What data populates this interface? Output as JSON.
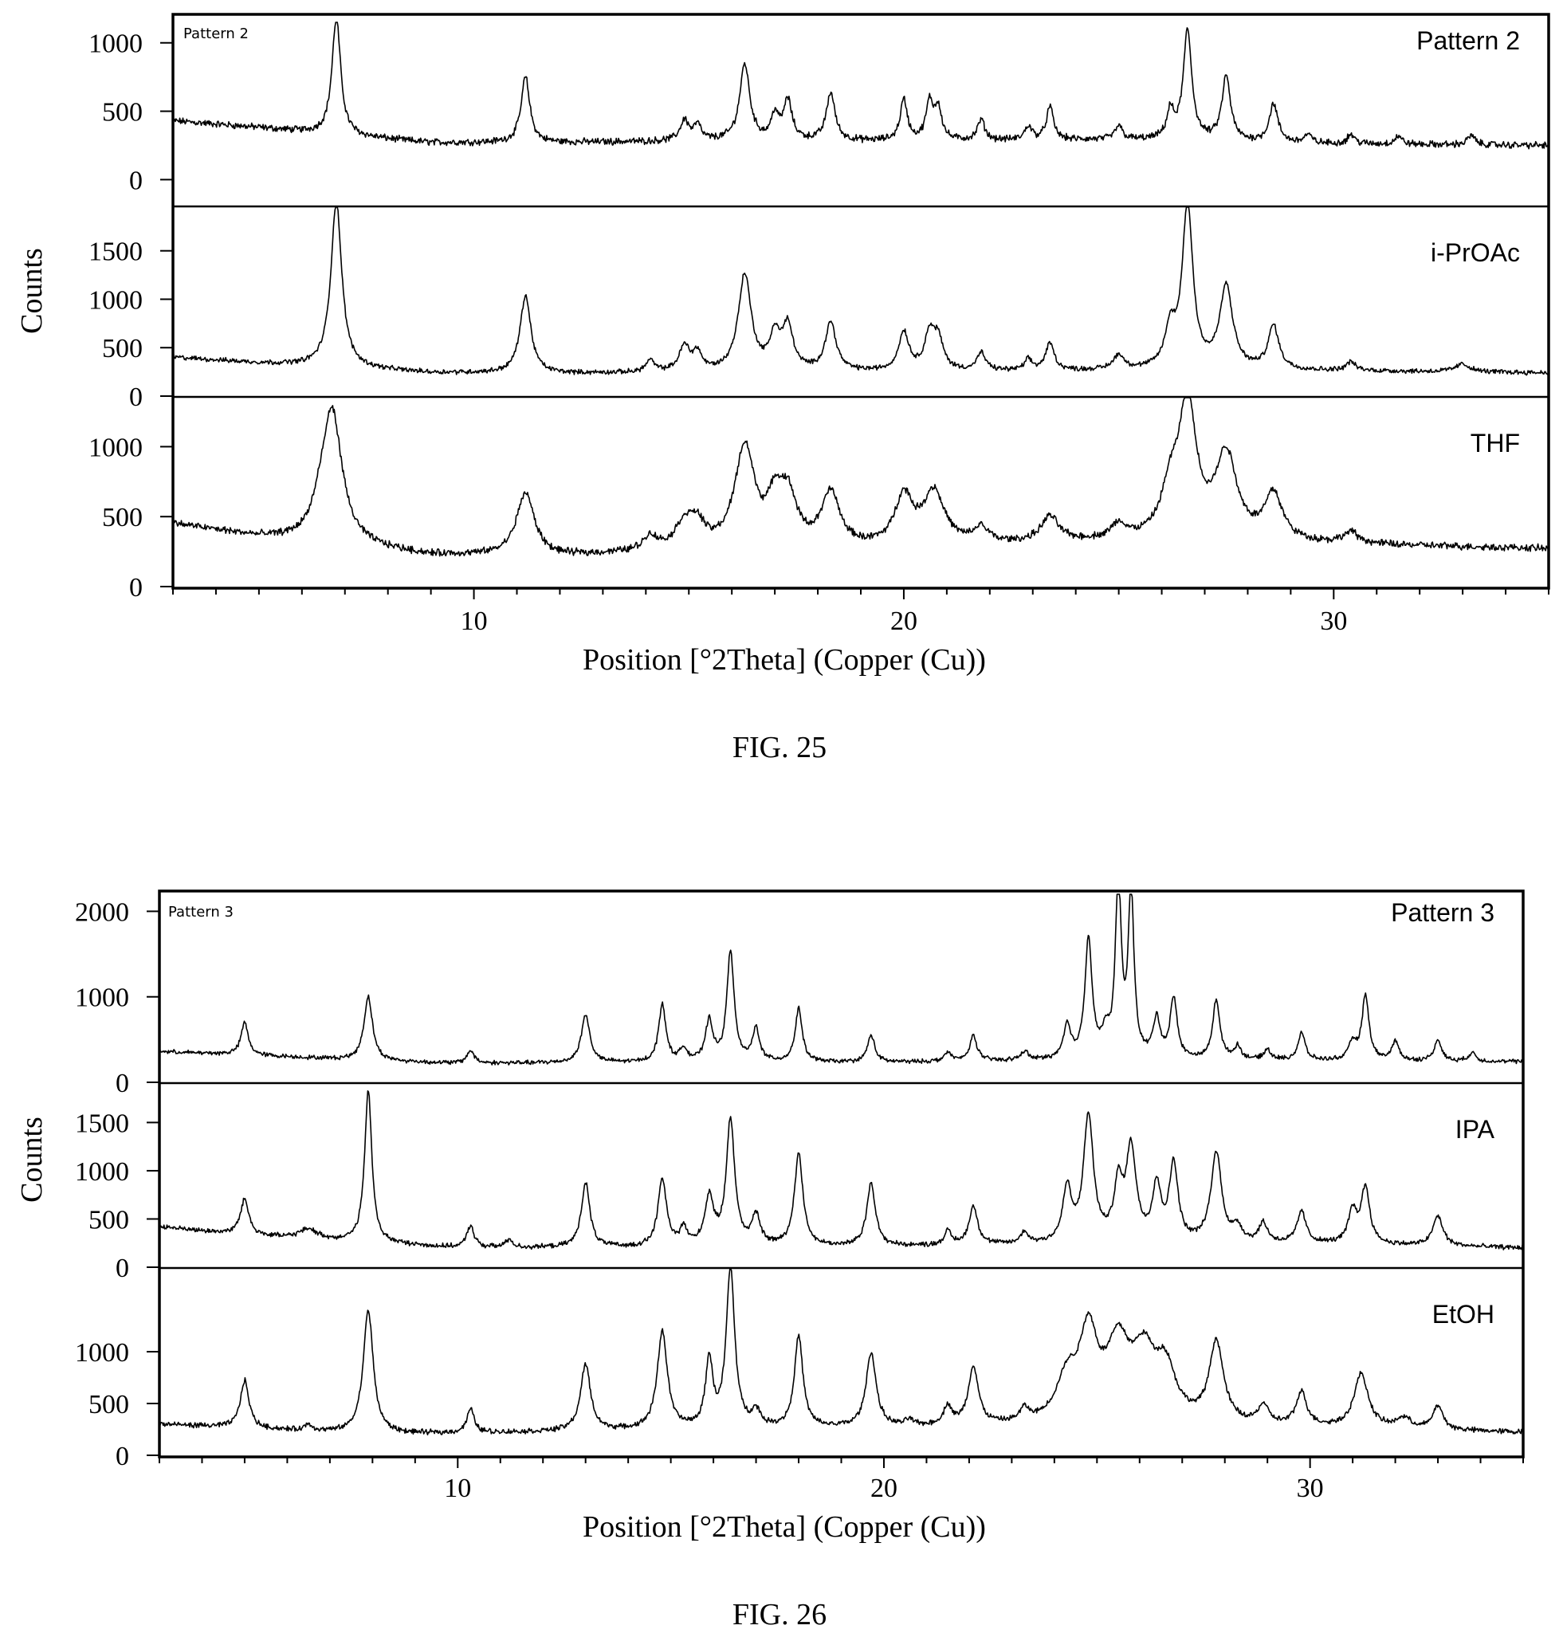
{
  "figures": [
    {
      "id": "fig25",
      "caption": "FIG. 25",
      "ylabel": "Counts",
      "xlabel": "Position [°2Theta] (Copper (Cu))",
      "inset_label": "Pattern 2",
      "xticks": [
        "10",
        "20",
        "30"
      ]
    },
    {
      "id": "fig26",
      "caption": "FIG. 26",
      "ylabel": "Counts",
      "xlabel": "Position [°2Theta] (Copper (Cu))",
      "inset_label": "Pattern 3",
      "xticks": [
        "10",
        "20",
        "30"
      ]
    }
  ],
  "chart_data": [
    {
      "type": "line",
      "xlabel": "Position [°2Theta] (Copper (Cu))",
      "ylabel": "Counts",
      "xlim": [
        3,
        35
      ],
      "grid": false,
      "panels": [
        {
          "name": "Pattern 2",
          "ylim": [
            -190,
            1150
          ],
          "yticks": [
            "0",
            "500",
            "1000"
          ],
          "baseline": {
            "x": [
              3,
              5,
              7,
              9,
              12,
              15,
              20,
              25,
              30,
              35
            ],
            "y": [
              430,
              380,
              320,
              270,
              270,
              280,
              280,
              290,
              260,
              250
            ]
          },
          "peaks": [
            [
              6.8,
              860,
              0.12
            ],
            [
              11.2,
              480,
              0.12
            ],
            [
              14.9,
              150,
              0.12
            ],
            [
              15.2,
              110,
              0.1
            ],
            [
              16.3,
              560,
              0.14
            ],
            [
              17.0,
              180,
              0.1
            ],
            [
              17.3,
              290,
              0.12
            ],
            [
              18.3,
              350,
              0.12
            ],
            [
              20.0,
              300,
              0.1
            ],
            [
              20.6,
              270,
              0.1
            ],
            [
              20.8,
              230,
              0.1
            ],
            [
              21.8,
              150,
              0.1
            ],
            [
              22.9,
              100,
              0.1
            ],
            [
              23.4,
              240,
              0.1
            ],
            [
              25.0,
              100,
              0.1
            ],
            [
              26.2,
              200,
              0.1
            ],
            [
              26.6,
              800,
              0.12
            ],
            [
              27.5,
              470,
              0.12
            ],
            [
              28.6,
              280,
              0.12
            ],
            [
              29.4,
              60,
              0.1
            ],
            [
              30.4,
              70,
              0.1
            ],
            [
              31.5,
              60,
              0.1
            ],
            [
              33.2,
              70,
              0.1
            ]
          ]
        },
        {
          "name": "i-PrOAc",
          "ylim": [
            0,
            1950
          ],
          "yticks": [
            "0",
            "500",
            "1000",
            "1500"
          ],
          "baseline": {
            "x": [
              3,
              5,
              7,
              9,
              12,
              15,
              20,
              25,
              30,
              35
            ],
            "y": [
              400,
              340,
              290,
              240,
              230,
              240,
              250,
              260,
              260,
              240
            ]
          },
          "peaks": [
            [
              6.8,
              1720,
              0.15
            ],
            [
              11.2,
              800,
              0.15
            ],
            [
              14.1,
              120,
              0.12
            ],
            [
              14.9,
              260,
              0.15
            ],
            [
              15.2,
              180,
              0.12
            ],
            [
              16.3,
              1000,
              0.18
            ],
            [
              17.0,
              350,
              0.14
            ],
            [
              17.3,
              450,
              0.15
            ],
            [
              18.3,
              500,
              0.15
            ],
            [
              20.0,
              400,
              0.14
            ],
            [
              20.6,
              360,
              0.14
            ],
            [
              20.8,
              300,
              0.14
            ],
            [
              21.8,
              180,
              0.12
            ],
            [
              22.9,
              110,
              0.1
            ],
            [
              23.4,
              280,
              0.12
            ],
            [
              25.0,
              150,
              0.15
            ],
            [
              26.2,
              380,
              0.15
            ],
            [
              26.6,
              1680,
              0.15
            ],
            [
              27.5,
              850,
              0.18
            ],
            [
              28.6,
              450,
              0.15
            ],
            [
              30.4,
              90,
              0.12
            ],
            [
              33.0,
              80,
              0.2
            ]
          ]
        },
        {
          "name": "THF",
          "ylim": [
            0,
            1350
          ],
          "yticks": [
            "0",
            "500",
            "1000"
          ],
          "baseline": {
            "x": [
              3,
              5,
              7,
              9,
              12,
              15,
              20,
              25,
              30,
              35
            ],
            "y": [
              450,
              350,
              290,
              220,
              210,
              250,
              270,
              320,
              300,
              270
            ]
          },
          "peaks": [
            [
              6.7,
              950,
              0.28
            ],
            [
              6.4,
              100,
              0.2
            ],
            [
              11.2,
              450,
              0.25
            ],
            [
              14.1,
              100,
              0.2
            ],
            [
              14.9,
              180,
              0.25
            ],
            [
              15.2,
              150,
              0.2
            ],
            [
              16.3,
              720,
              0.28
            ],
            [
              17.0,
              270,
              0.2
            ],
            [
              17.3,
              350,
              0.25
            ],
            [
              18.3,
              380,
              0.25
            ],
            [
              20.0,
              350,
              0.25
            ],
            [
              20.7,
              380,
              0.3
            ],
            [
              21.8,
              110,
              0.2
            ],
            [
              23.4,
              180,
              0.25
            ],
            [
              25.0,
              100,
              0.2
            ],
            [
              26.2,
              300,
              0.25
            ],
            [
              26.6,
              950,
              0.25
            ],
            [
              27.5,
              600,
              0.3
            ],
            [
              28.6,
              330,
              0.25
            ],
            [
              30.4,
              80,
              0.2
            ]
          ]
        }
      ]
    },
    {
      "type": "line",
      "xlabel": "Position [°2Theta] (Copper (Cu))",
      "ylabel": "Counts",
      "xlim": [
        3,
        35
      ],
      "grid": false,
      "panels": [
        {
          "name": "Pattern 3",
          "ylim": [
            0,
            2200
          ],
          "yticks": [
            "0",
            "1000",
            "2000"
          ],
          "baseline": {
            "x": [
              3,
              5,
              8,
              10,
              15,
              20,
              25,
              30,
              35
            ],
            "y": [
              360,
              320,
              250,
              220,
              230,
              230,
              260,
              250,
              240
            ]
          },
          "peaks": [
            [
              5.0,
              380,
              0.1
            ],
            [
              7.9,
              750,
              0.12
            ],
            [
              10.3,
              150,
              0.1
            ],
            [
              13.0,
              560,
              0.12
            ],
            [
              14.8,
              680,
              0.1
            ],
            [
              15.3,
              150,
              0.1
            ],
            [
              15.9,
              480,
              0.1
            ],
            [
              16.4,
              1300,
              0.1
            ],
            [
              17.0,
              380,
              0.1
            ],
            [
              18.0,
              620,
              0.1
            ],
            [
              19.7,
              320,
              0.1
            ],
            [
              21.5,
              100,
              0.1
            ],
            [
              22.1,
              300,
              0.1
            ],
            [
              23.3,
              100,
              0.1
            ],
            [
              24.3,
              380,
              0.1
            ],
            [
              24.8,
              1400,
              0.1
            ],
            [
              25.2,
              250,
              0.1
            ],
            [
              25.5,
              2100,
              0.08
            ],
            [
              25.8,
              1950,
              0.08
            ],
            [
              26.4,
              450,
              0.1
            ],
            [
              26.8,
              700,
              0.1
            ],
            [
              27.8,
              700,
              0.1
            ],
            [
              28.3,
              150,
              0.1
            ],
            [
              29.0,
              120,
              0.1
            ],
            [
              29.8,
              320,
              0.1
            ],
            [
              31.0,
              200,
              0.1
            ],
            [
              31.3,
              750,
              0.1
            ],
            [
              32.0,
              220,
              0.1
            ],
            [
              33.0,
              250,
              0.1
            ],
            [
              33.8,
              100,
              0.1
            ]
          ]
        },
        {
          "name": "IPA",
          "ylim": [
            0,
            1900
          ],
          "yticks": [
            "0",
            "500",
            "1000",
            "1500"
          ],
          "baseline": {
            "x": [
              3,
              5,
              8,
              10,
              15,
              20,
              25,
              30,
              35
            ],
            "y": [
              420,
              330,
              250,
              200,
              200,
              210,
              240,
              240,
              200
            ]
          },
          "peaks": [
            [
              5.0,
              370,
              0.12
            ],
            [
              6.5,
              100,
              0.25
            ],
            [
              7.9,
              1580,
              0.1
            ],
            [
              10.3,
              230,
              0.1
            ],
            [
              11.2,
              80,
              0.1
            ],
            [
              13.0,
              670,
              0.12
            ],
            [
              14.8,
              700,
              0.12
            ],
            [
              15.3,
              180,
              0.1
            ],
            [
              15.9,
              500,
              0.12
            ],
            [
              16.4,
              1300,
              0.12
            ],
            [
              17.0,
              300,
              0.12
            ],
            [
              18.0,
              960,
              0.12
            ],
            [
              19.7,
              660,
              0.12
            ],
            [
              21.5,
              140,
              0.1
            ],
            [
              22.1,
              400,
              0.12
            ],
            [
              23.3,
              120,
              0.1
            ],
            [
              24.3,
              550,
              0.12
            ],
            [
              24.8,
              1300,
              0.14
            ],
            [
              25.5,
              550,
              0.12
            ],
            [
              25.8,
              950,
              0.14
            ],
            [
              26.4,
              560,
              0.12
            ],
            [
              26.8,
              800,
              0.12
            ],
            [
              27.8,
              930,
              0.15
            ],
            [
              28.3,
              150,
              0.12
            ],
            [
              28.9,
              200,
              0.12
            ],
            [
              29.8,
              330,
              0.12
            ],
            [
              31.0,
              330,
              0.12
            ],
            [
              31.3,
              580,
              0.12
            ],
            [
              33.0,
              310,
              0.14
            ]
          ]
        },
        {
          "name": "EtOH",
          "ylim": [
            0,
            1800
          ],
          "yticks": [
            "0",
            "500",
            "1000"
          ],
          "baseline": {
            "x": [
              3,
              5,
              8,
              10,
              15,
              20,
              25,
              30,
              35
            ],
            "y": [
              300,
              260,
              200,
              210,
              240,
              260,
              280,
              260,
              220
            ]
          },
          "peaks": [
            [
              5.0,
              460,
              0.12
            ],
            [
              6.5,
              60,
              0.1
            ],
            [
              7.9,
              1200,
              0.14
            ],
            [
              10.3,
              230,
              0.1
            ],
            [
              13.0,
              640,
              0.14
            ],
            [
              14.8,
              950,
              0.14
            ],
            [
              15.9,
              650,
              0.1
            ],
            [
              16.4,
              1540,
              0.12
            ],
            [
              17.0,
              150,
              0.12
            ],
            [
              18.0,
              880,
              0.12
            ],
            [
              19.7,
              720,
              0.14
            ],
            [
              20.6,
              60,
              0.1
            ],
            [
              21.5,
              180,
              0.12
            ],
            [
              22.1,
              560,
              0.14
            ],
            [
              23.3,
              120,
              0.12
            ],
            [
              24.3,
              400,
              0.3
            ],
            [
              24.8,
              800,
              0.25
            ],
            [
              25.5,
              720,
              0.35
            ],
            [
              26.1,
              550,
              0.3
            ],
            [
              26.6,
              500,
              0.3
            ],
            [
              27.8,
              780,
              0.2
            ],
            [
              28.9,
              180,
              0.15
            ],
            [
              29.8,
              320,
              0.15
            ],
            [
              31.2,
              520,
              0.2
            ],
            [
              32.2,
              100,
              0.2
            ],
            [
              33.0,
              230,
              0.14
            ]
          ]
        }
      ]
    }
  ]
}
